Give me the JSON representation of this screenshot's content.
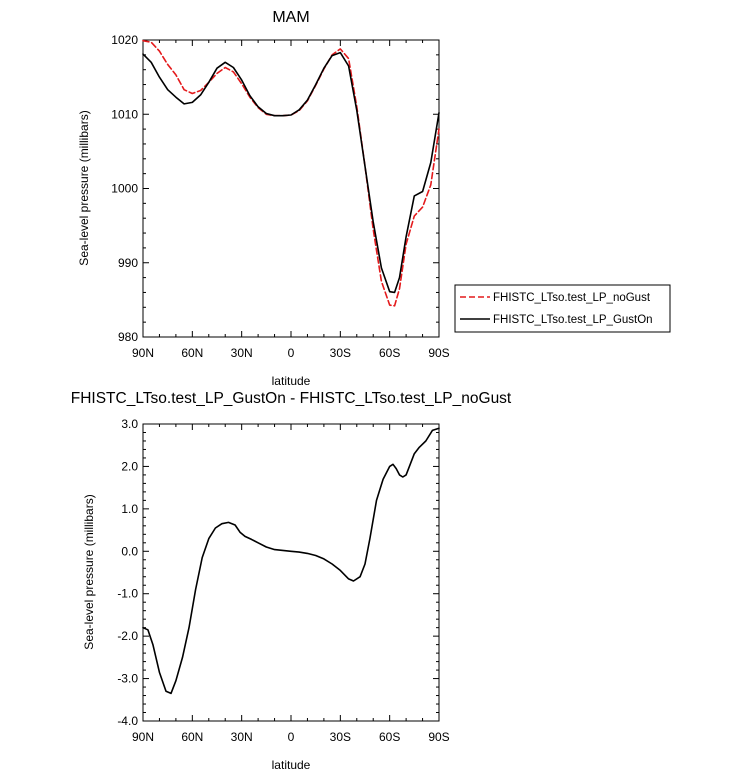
{
  "chart_data": [
    {
      "type": "line",
      "title": "MAM",
      "xlabel": "latitude",
      "ylabel": "Sea-level pressure (millibars)",
      "xlim": [
        -90,
        90
      ],
      "ylim": [
        980,
        1020
      ],
      "x_ticks": [
        -90,
        -60,
        -30,
        0,
        30,
        60,
        90
      ],
      "x_tick_labels": [
        "90N",
        "60N",
        "30N",
        "0",
        "30S",
        "60S",
        "90S"
      ],
      "y_ticks": [
        980,
        990,
        1000,
        1010,
        1020
      ],
      "y_tick_labels": [
        "980",
        "990",
        "1000",
        "1010",
        "1020"
      ],
      "legend_position": "outside-right",
      "series": [
        {
          "name": "FHISTC_LTso.test_LP_noGust",
          "color": "#e41a1c",
          "dash": "dashed",
          "x": [
            -90,
            -85,
            -80,
            -75,
            -70,
            -65,
            -60,
            -55,
            -50,
            -45,
            -40,
            -35,
            -30,
            -25,
            -20,
            -15,
            -10,
            -5,
            0,
            5,
            10,
            15,
            20,
            25,
            30,
            35,
            40,
            45,
            50,
            55,
            60,
            63,
            66,
            70,
            75,
            80,
            85,
            90
          ],
          "y": [
            1019.9,
            1019.7,
            1018.5,
            1016.7,
            1015.3,
            1013.3,
            1012.8,
            1013.2,
            1014.3,
            1015.5,
            1016.3,
            1015.7,
            1014.1,
            1012.3,
            1010.9,
            1010.0,
            1009.8,
            1009.8,
            1009.9,
            1010.5,
            1011.8,
            1013.9,
            1016.1,
            1018.0,
            1018.8,
            1017.5,
            1011.0,
            1003.0,
            994.5,
            987.5,
            984.3,
            984.2,
            986.5,
            992.5,
            996.3,
            997.5,
            1000.5,
            1008.0
          ]
        },
        {
          "name": "FHISTC_LTso.test_LP_GustOn",
          "color": "#000000",
          "dash": "solid",
          "x": [
            -90,
            -85,
            -80,
            -75,
            -70,
            -65,
            -60,
            -55,
            -50,
            -45,
            -40,
            -35,
            -30,
            -25,
            -20,
            -15,
            -10,
            -5,
            0,
            5,
            10,
            15,
            20,
            25,
            30,
            35,
            40,
            45,
            50,
            55,
            60,
            63,
            66,
            70,
            75,
            80,
            85,
            90
          ],
          "y": [
            1018.1,
            1017.0,
            1015.0,
            1013.3,
            1012.3,
            1011.4,
            1011.6,
            1012.6,
            1014.3,
            1016.2,
            1017.0,
            1016.3,
            1014.6,
            1012.5,
            1011.0,
            1010.1,
            1009.8,
            1009.8,
            1009.9,
            1010.6,
            1011.9,
            1014.0,
            1016.2,
            1017.9,
            1018.3,
            1016.5,
            1010.5,
            1003.0,
            995.5,
            989.3,
            986.1,
            986.0,
            988.0,
            993.5,
            999.0,
            999.6,
            1003.5,
            1010.2
          ]
        }
      ]
    },
    {
      "type": "line",
      "title": "FHISTC_LTso.test_LP_GustOn - FHISTC_LTso.test_LP_noGust",
      "xlabel": "latitude",
      "ylabel": "Sea-level pressure (millibars)",
      "xlim": [
        -90,
        90
      ],
      "ylim": [
        -4,
        3
      ],
      "x_ticks": [
        -90,
        -60,
        -30,
        0,
        30,
        60,
        90
      ],
      "x_tick_labels": [
        "90N",
        "60N",
        "30N",
        "0",
        "30S",
        "60S",
        "90S"
      ],
      "y_ticks": [
        -4,
        -3,
        -2,
        -1,
        0,
        1,
        2,
        3
      ],
      "y_tick_labels": [
        "-4.0",
        "-3.0",
        "-2.0",
        "-1.0",
        "0.0",
        "1.0",
        "2.0",
        "3.0"
      ],
      "series": [
        {
          "color": "#000000",
          "dash": "solid",
          "x": [
            -90,
            -87,
            -84,
            -80,
            -76,
            -73,
            -70,
            -66,
            -62,
            -58,
            -54,
            -50,
            -46,
            -42,
            -38,
            -34,
            -31,
            -28,
            -24,
            -20,
            -15,
            -10,
            -5,
            0,
            5,
            10,
            15,
            20,
            25,
            30,
            35,
            38,
            42,
            45,
            48,
            52,
            56,
            60,
            62,
            64,
            66,
            68,
            70,
            72,
            75,
            78,
            82,
            86,
            90
          ],
          "y": [
            -1.8,
            -1.85,
            -2.2,
            -2.85,
            -3.3,
            -3.35,
            -3.05,
            -2.5,
            -1.8,
            -0.9,
            -0.15,
            0.3,
            0.55,
            0.65,
            0.68,
            0.62,
            0.45,
            0.35,
            0.28,
            0.2,
            0.1,
            0.04,
            0.02,
            0.0,
            -0.02,
            -0.05,
            -0.1,
            -0.18,
            -0.3,
            -0.45,
            -0.65,
            -0.7,
            -0.6,
            -0.3,
            0.3,
            1.2,
            1.7,
            2.0,
            2.05,
            1.95,
            1.8,
            1.75,
            1.8,
            2.0,
            2.3,
            2.45,
            2.6,
            2.85,
            2.9
          ]
        }
      ]
    }
  ]
}
